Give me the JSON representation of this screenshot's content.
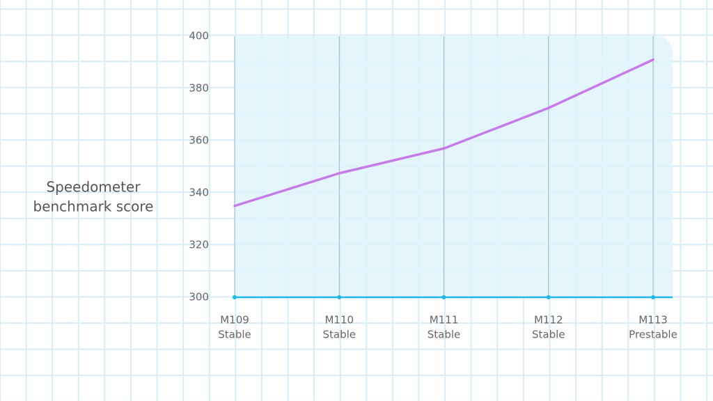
{
  "chart_data": {
    "type": "line",
    "y_label": [
      "Speedometer",
      "benchmark score"
    ],
    "categories": [
      [
        "M109",
        "Stable"
      ],
      [
        "M110",
        "Stable"
      ],
      [
        "M111",
        "Stable"
      ],
      [
        "M112",
        "Stable"
      ],
      [
        "M113",
        "Prestable"
      ]
    ],
    "values": [
      335,
      347.5,
      357,
      372.5,
      391
    ],
    "color": "#c77bea",
    "ylim": [
      300,
      400
    ],
    "yticks": [
      300,
      320,
      340,
      360,
      380,
      400
    ]
  }
}
